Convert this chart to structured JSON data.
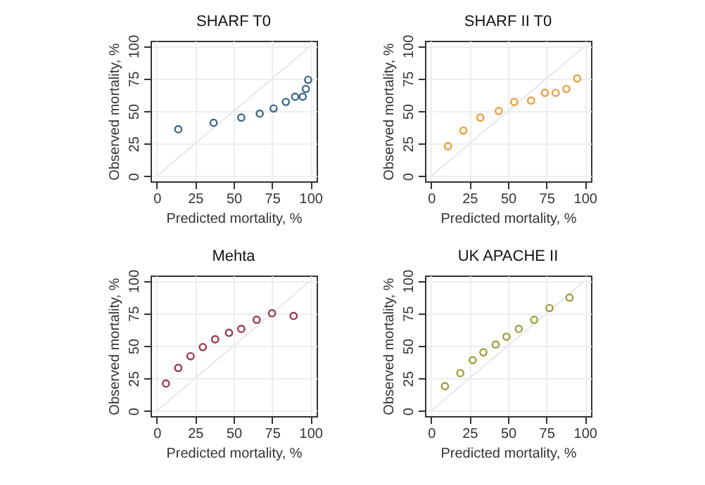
{
  "chart_data": [
    {
      "type": "scatter",
      "title": "SHARF T0",
      "xlabel": "Predicted mortality, %",
      "ylabel": "Observed mortality, %",
      "xlim": [
        -4,
        104
      ],
      "ylim": [
        -4,
        104
      ],
      "xticks": [
        0,
        25,
        50,
        75,
        100
      ],
      "yticks": [
        0,
        25,
        50,
        75,
        100
      ],
      "grid": true,
      "marker": "circle",
      "series": [
        {
          "type": "line",
          "color": "#e4e8ec",
          "x": [
            0,
            100
          ],
          "values": [
            0,
            100
          ],
          "marker": "none"
        },
        {
          "color": "#3e6a8a",
          "x": [
            14,
            37,
            55,
            67,
            76,
            84,
            90,
            95,
            97,
            98.5
          ],
          "values": [
            36,
            41,
            45,
            48,
            52,
            57,
            61,
            61,
            67,
            74
          ]
        }
      ]
    },
    {
      "type": "scatter",
      "title": "SHARF II T0",
      "xlabel": "Predicted mortality, %",
      "ylabel": "Observed mortality, %",
      "xlim": [
        -4,
        104
      ],
      "ylim": [
        -4,
        104
      ],
      "xticks": [
        0,
        25,
        50,
        75,
        100
      ],
      "yticks": [
        0,
        25,
        50,
        75,
        100
      ],
      "grid": true,
      "marker": "circle",
      "series": [
        {
          "type": "line",
          "color": "#e4e8ec",
          "x": [
            0,
            100
          ],
          "values": [
            0,
            100
          ],
          "marker": "none"
        },
        {
          "color": "#e8a040",
          "x": [
            11,
            21,
            32,
            44,
            54,
            65,
            74,
            81,
            88,
            95
          ],
          "values": [
            23,
            35,
            45,
            50,
            57,
            58,
            64,
            64,
            67,
            75
          ]
        }
      ]
    },
    {
      "type": "scatter",
      "title": "Mehta",
      "xlabel": "Predicted mortality, %",
      "ylabel": "Observed mortality, %",
      "xlim": [
        -4,
        104
      ],
      "ylim": [
        -4,
        104
      ],
      "xticks": [
        0,
        25,
        50,
        75,
        100
      ],
      "yticks": [
        0,
        25,
        50,
        75,
        100
      ],
      "grid": true,
      "marker": "circle",
      "series": [
        {
          "type": "line",
          "color": "#e4e8ec",
          "x": [
            0,
            100
          ],
          "values": [
            0,
            100
          ],
          "marker": "none"
        },
        {
          "color": "#9b3a4a",
          "x": [
            6,
            14,
            22,
            30,
            38,
            47,
            55,
            65,
            75,
            89
          ],
          "values": [
            21,
            33,
            42,
            49,
            55,
            60,
            63,
            70,
            75,
            73
          ]
        }
      ]
    },
    {
      "type": "scatter",
      "title": "UK APACHE II",
      "xlabel": "Predicted mortality, %",
      "ylabel": "Observed mortality, %",
      "xlim": [
        -4,
        104
      ],
      "ylim": [
        -4,
        104
      ],
      "xticks": [
        0,
        25,
        50,
        75,
        100
      ],
      "yticks": [
        0,
        25,
        50,
        75,
        100
      ],
      "grid": true,
      "marker": "circle",
      "series": [
        {
          "type": "line",
          "color": "#e4e8ec",
          "x": [
            0,
            100
          ],
          "values": [
            0,
            100
          ],
          "marker": "none"
        },
        {
          "color": "#a0a040",
          "x": [
            9,
            19,
            27,
            34,
            42,
            49,
            57,
            67,
            77,
            90
          ],
          "values": [
            19,
            29,
            39,
            45,
            51,
            57,
            63,
            70,
            79,
            87
          ]
        }
      ]
    }
  ]
}
